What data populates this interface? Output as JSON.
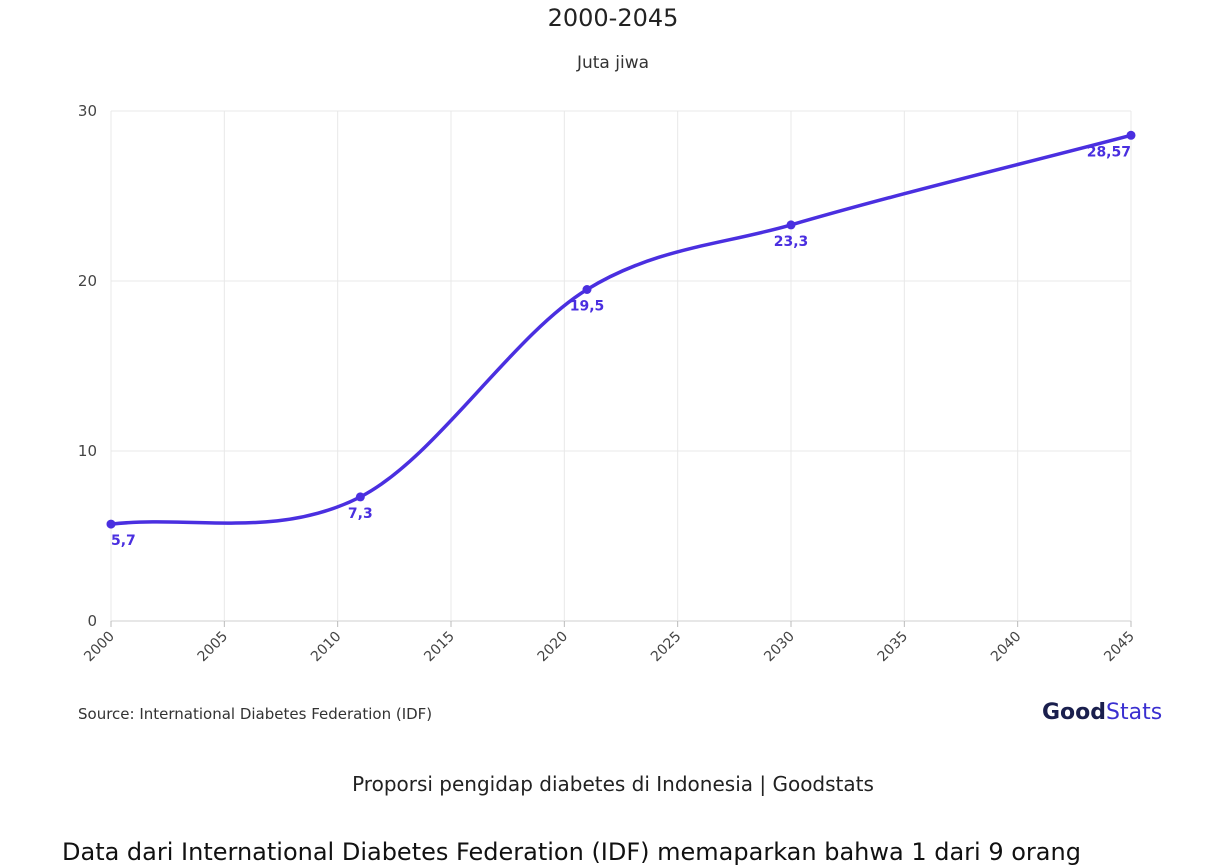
{
  "chart_data": {
    "type": "line",
    "subtitle": "2000-2045",
    "unit_label": "Juta jiwa",
    "x": [
      2000,
      2011,
      2021,
      2030,
      2045
    ],
    "series": [
      {
        "name": "",
        "values": [
          5.7,
          7.3,
          19.5,
          23.3,
          28.57
        ],
        "color": "#4a2fe0"
      }
    ],
    "data_labels": [
      "5,7",
      "7,3",
      "19,5",
      "23,3",
      "28,57"
    ],
    "xlim": [
      2000,
      2045
    ],
    "ylim": [
      0,
      30
    ],
    "x_ticks": [
      "2000",
      "2005",
      "2010",
      "2015",
      "2020",
      "2025",
      "2030",
      "2035",
      "2040",
      "2045"
    ],
    "y_ticks": [
      "0",
      "10",
      "20",
      "30"
    ],
    "grid": true,
    "source": "Source: International Diabetes Federation (IDF)"
  },
  "logo": {
    "good": "Good",
    "stats": "Stats"
  },
  "caption": "Proporsi pengidap diabetes di Indonesia | Goodstats",
  "body_text": "Data dari International Diabetes Federation (IDF) memaparkan bahwa 1 dari 9 orang"
}
